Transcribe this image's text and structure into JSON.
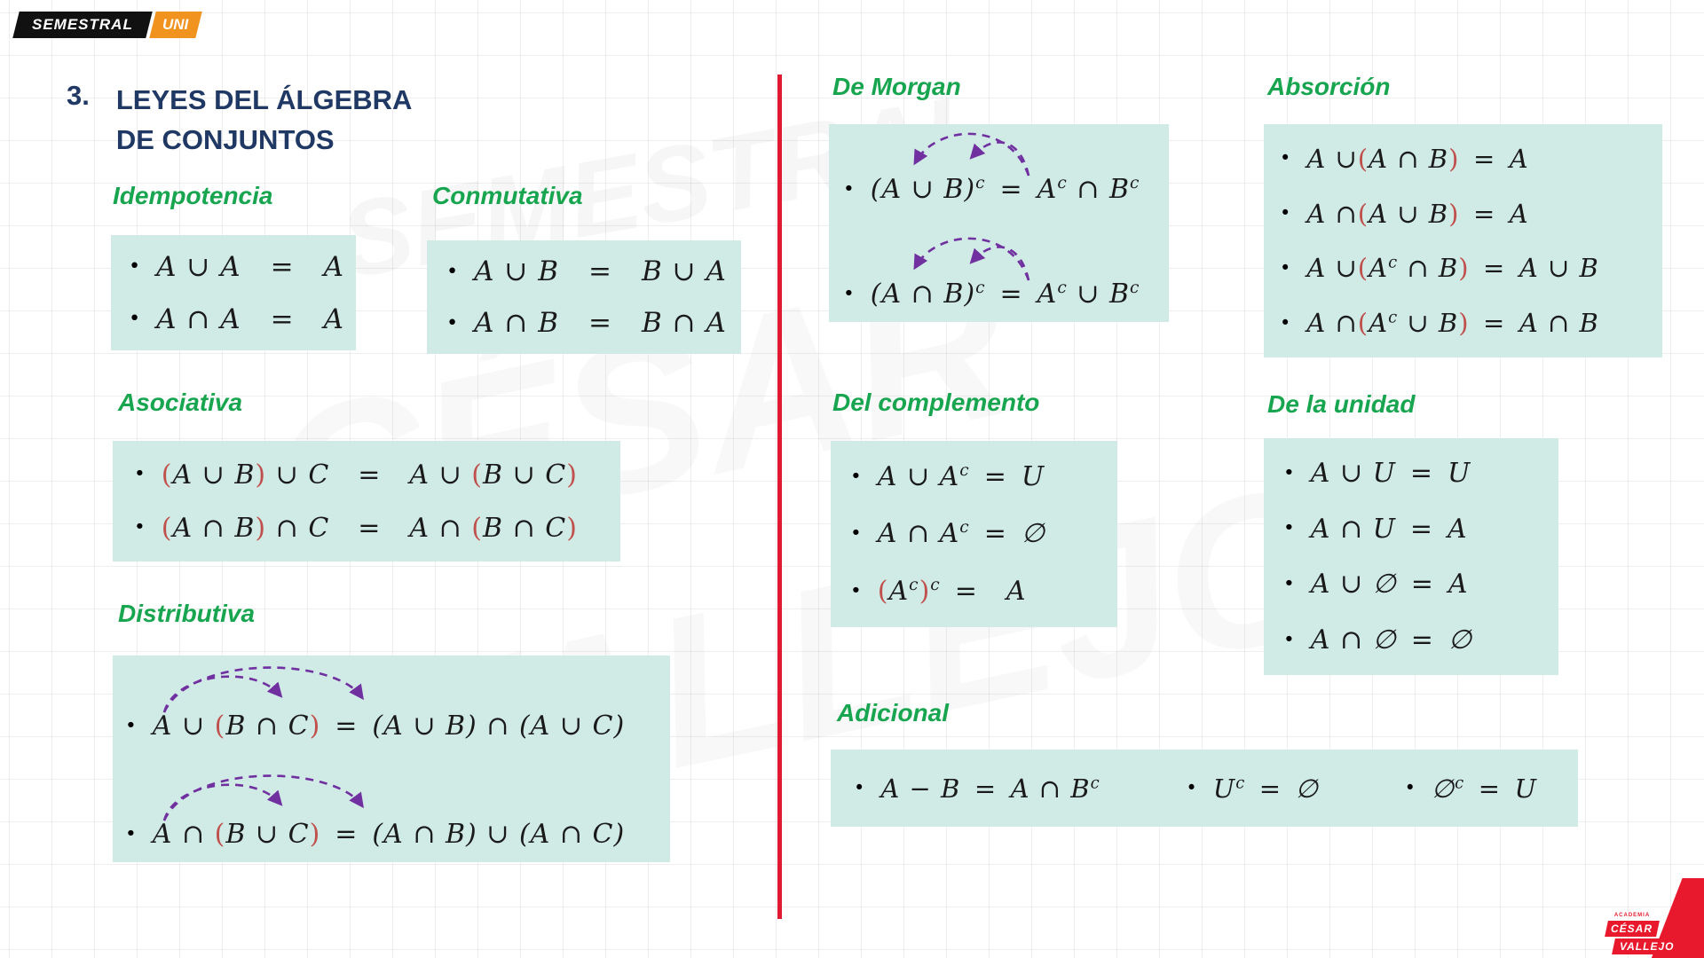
{
  "colors": {
    "green": "#18a54f",
    "navy": "#1f3864",
    "teal": "#d0ebe6",
    "paren_red": "#c0504d",
    "purple": "#7030a0",
    "divider_red": "#e11931",
    "orange": "#f0941f",
    "brand_red": "#e8192c",
    "black": "#111111"
  },
  "logo": {
    "left": "SEMESTRAL",
    "right": "UNI"
  },
  "watermarks": {
    "w1": "SEMESTRAL",
    "w2": "CÉSAR",
    "w3": "VALLEJO"
  },
  "title": {
    "number": "3.",
    "line1": "LEYES DEL ÁLGEBRA",
    "line2": "DE CONJUNTOS"
  },
  "sections": {
    "idempotencia": {
      "heading": "Idempotencia",
      "formulas": [
        "A ∪ A  =  A",
        "A ∩ A  =  A"
      ]
    },
    "conmutativa": {
      "heading": "Conmutativa",
      "formulas": [
        "A ∪ B  =  B ∪ A",
        "A ∩ B  =  B ∩ A"
      ]
    },
    "asociativa": {
      "heading": "Asociativa",
      "formulas": [
        "⟨A ∪ B⟩ ∪ C  =  A ∪ ⟨B ∪ C⟩",
        "⟨A ∩ B⟩ ∩ C  =  A ∩ ⟨B ∩ C⟩"
      ]
    },
    "distributiva": {
      "heading": "Distributiva",
      "formulas": [
        "A ∪ ⟨B ∩ C⟩ = (A ∪ B) ∩ (A ∪ C)",
        "A ∩ ⟨B ∪ C⟩ = (A ∩ B) ∪ (A ∩ C)"
      ]
    },
    "de_morgan": {
      "heading": "De Morgan",
      "formulas": [
        "(A ∪ B)^c = A^c ∩ B^c",
        "(A ∩ B)^c = A^c ∪ B^c"
      ]
    },
    "del_complemento": {
      "heading": "Del complemento",
      "formulas": [
        "A ∪ A^c = U",
        "A ∩ A^c = ∅",
        "⟨A^c⟩^c =  A"
      ]
    },
    "adicional": {
      "heading": "Adicional",
      "formulas": [
        "A − B = A ∩ B^c",
        "U^c = ∅",
        "∅^c = U"
      ]
    },
    "absorcion": {
      "heading": "Absorción",
      "formulas": [
        "A ∪⟨A ∩ B⟩ = A",
        "A ∩⟨A ∪ B⟩ = A",
        "A ∪⟨A^c ∩ B⟩ = A ∪ B",
        "A ∩⟨A^c ∪ B⟩ = A ∩ B"
      ]
    },
    "de_la_unidad": {
      "heading": "De la unidad",
      "formulas": [
        "A ∪ U = U",
        "A ∩ U = A",
        "A ∪ ∅ = A",
        "A ∩ ∅ = ∅"
      ]
    }
  },
  "brand_footer": {
    "tagline": "ACADEMIA",
    "line1": "CÉSAR",
    "line2": "VALLEJO"
  }
}
